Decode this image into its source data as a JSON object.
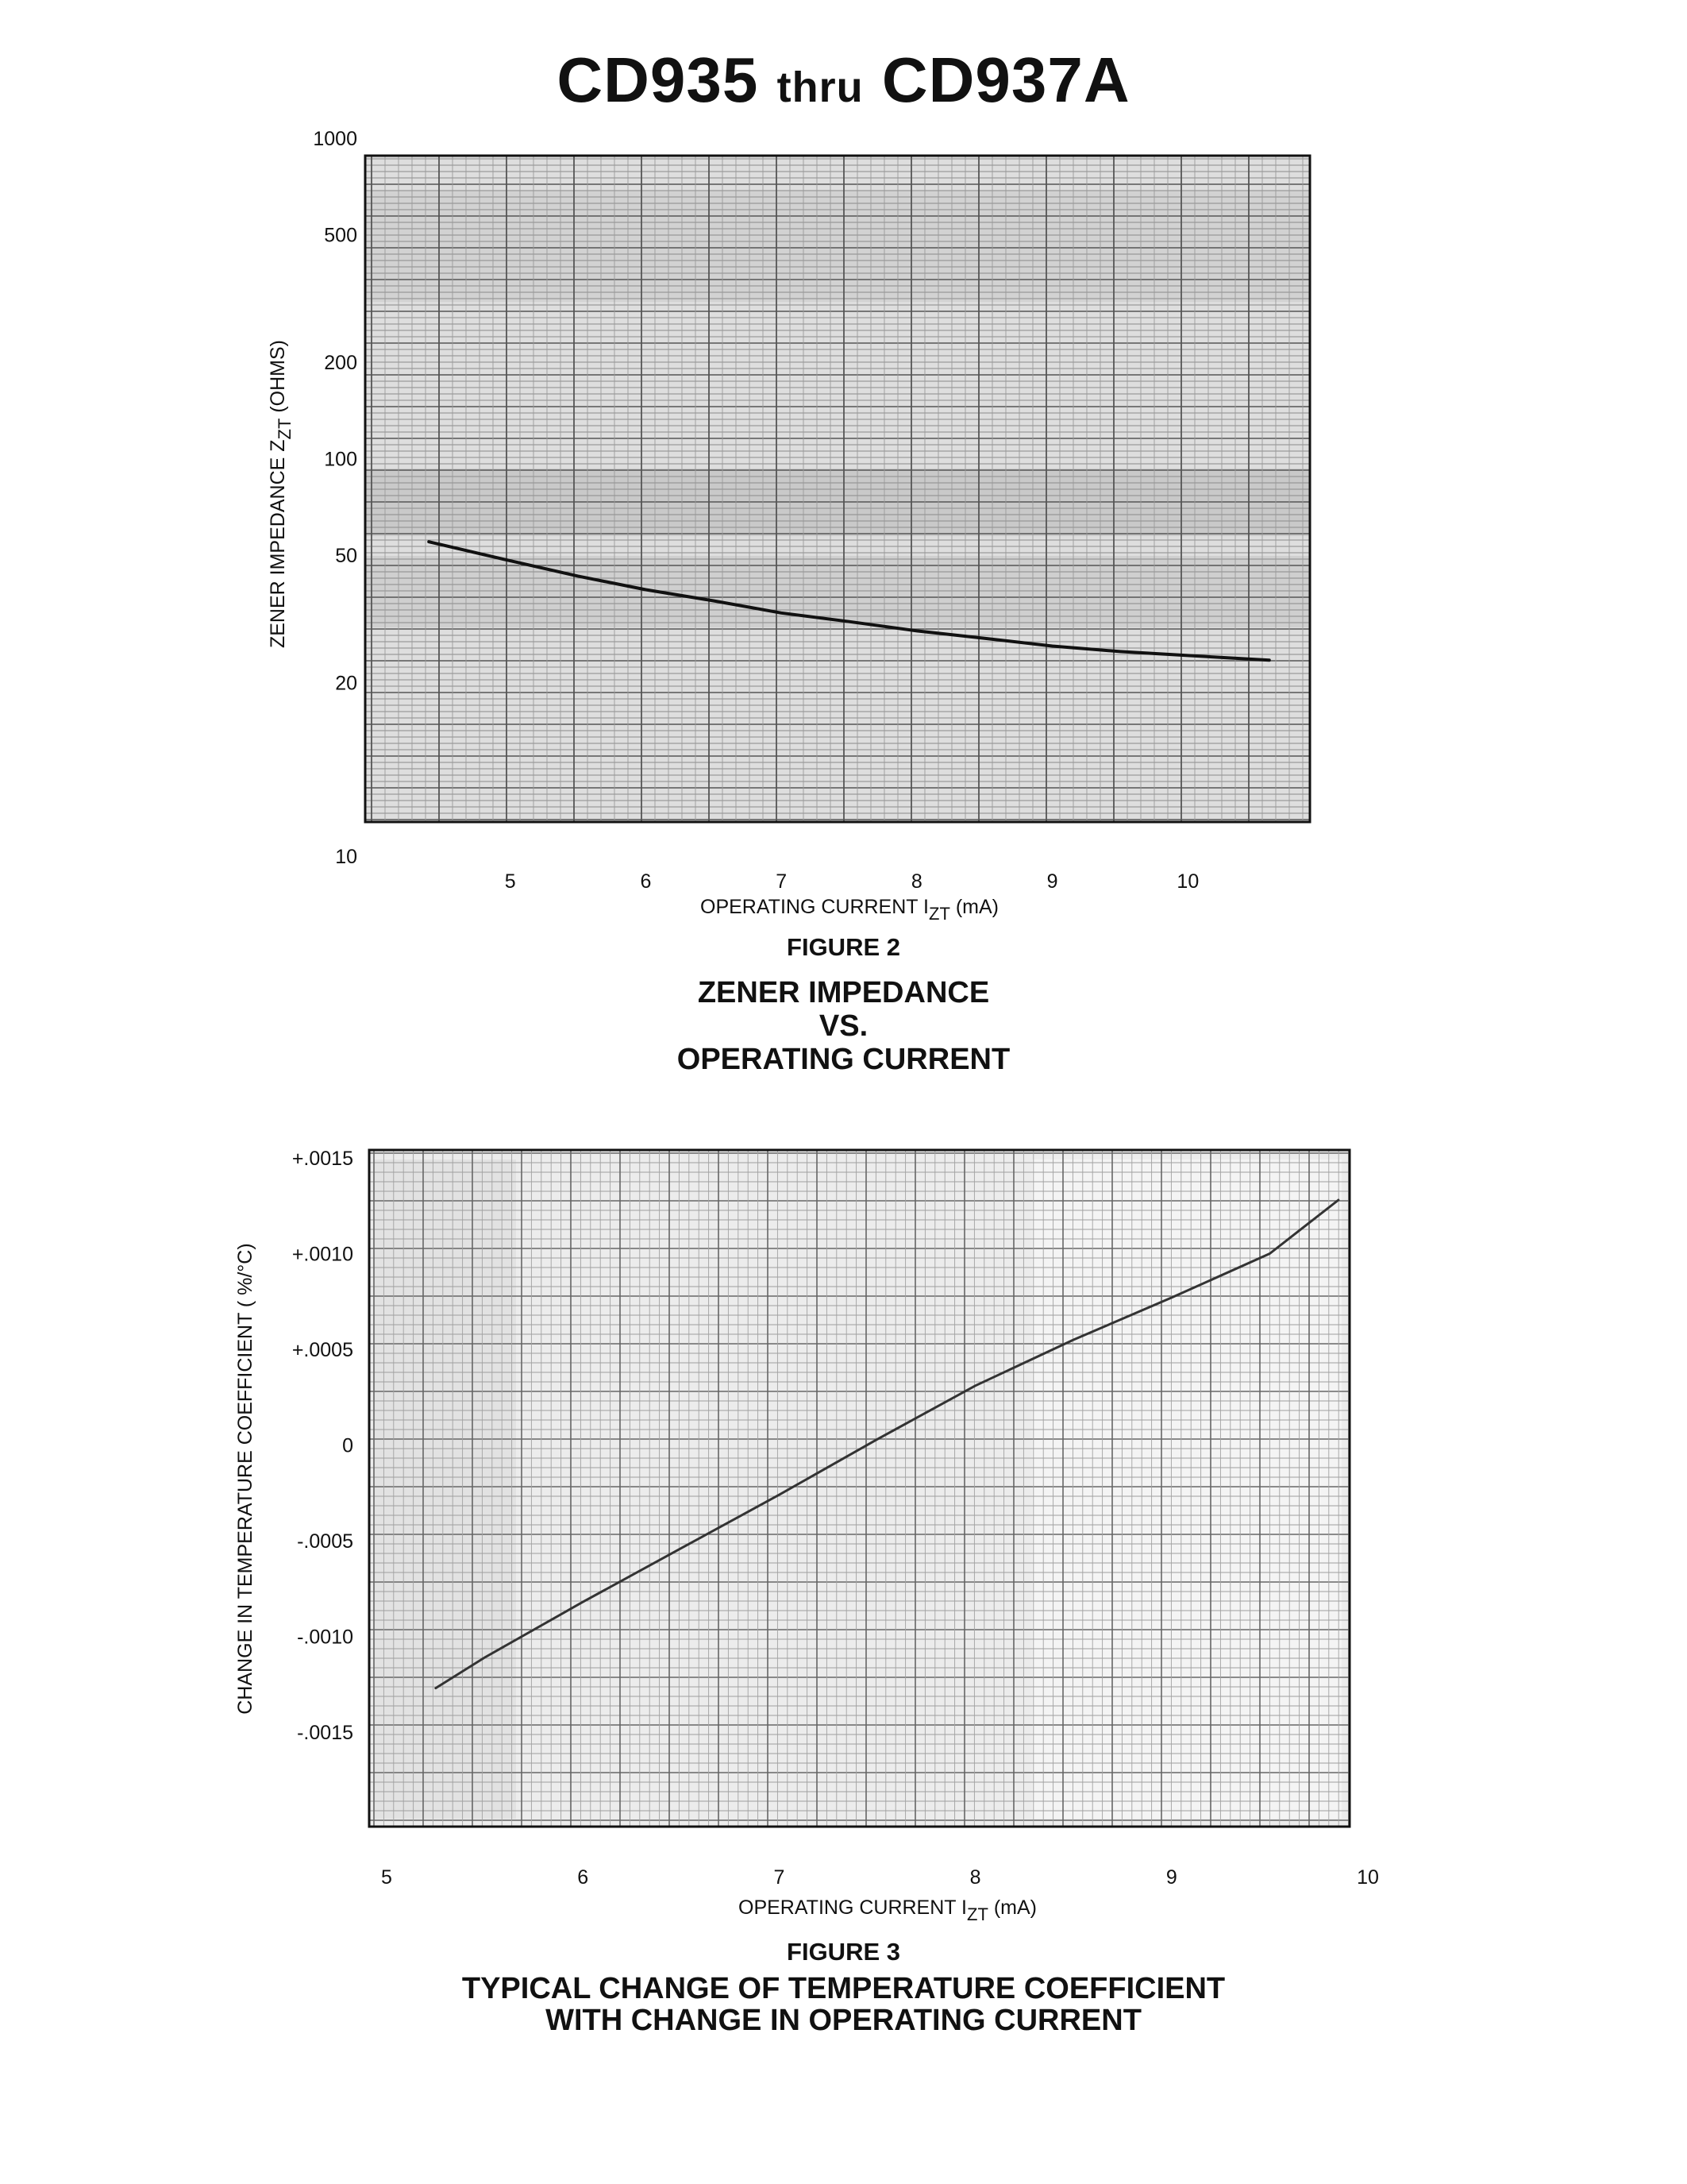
{
  "page": {
    "title_main_1": "CD935",
    "title_small": "thru",
    "title_main_2": "CD937A"
  },
  "figure2": {
    "number": "FIGURE 2",
    "title_lines": [
      "ZENER IMPEDANCE",
      "VS.",
      "OPERATING CURRENT"
    ]
  },
  "figure3": {
    "number": "FIGURE 3",
    "title_lines": [
      "TYPICAL CHANGE OF TEMPERATURE COEFFICIENT",
      "WITH CHANGE IN OPERATING CURRENT"
    ]
  },
  "chart_data": [
    {
      "type": "line",
      "xlabel": "OPERATING CURRENT IZT (mA)",
      "ylabel": "ZENER IMPEDANCE ZZT (OHMS)",
      "y_scale": "log",
      "xlim": [
        3.93,
        10.9
      ],
      "ylim": [
        10,
        1200
      ],
      "x_ticks": [
        5,
        6,
        7,
        8,
        9,
        10
      ],
      "y_ticks": [
        {
          "value": 1000,
          "label": "1000"
        },
        {
          "value": 500,
          "label": "500"
        },
        {
          "value": 200,
          "label": "200"
        },
        {
          "value": 100,
          "label": "100"
        },
        {
          "value": 50,
          "label": "50"
        },
        {
          "value": 20,
          "label": "20"
        },
        {
          "value": 10,
          "label": "10"
        }
      ],
      "grid": true,
      "series": [
        {
          "x": [
            4.4,
            5.0,
            5.5,
            6.0,
            6.5,
            7.0,
            7.5,
            8.0,
            8.5,
            9.0,
            9.5,
            10.0,
            10.6
          ],
          "y": [
            55,
            48,
            43,
            39,
            36,
            33,
            31,
            29,
            27.5,
            26,
            25,
            24.3,
            23.5
          ]
        }
      ]
    },
    {
      "type": "line",
      "xlabel": "OPERATING CURRENT IZT (mA)",
      "ylabel": "CHANGE IN TEMPERATURE COEFFICIENT ( %/°C)",
      "xlim": [
        4.9,
        9.9
      ],
      "ylim": [
        -0.002,
        0.0015
      ],
      "x_ticks": [
        {
          "value": 5,
          "label": "5"
        },
        {
          "value": 6,
          "label": "6"
        },
        {
          "value": 7,
          "label": "7"
        },
        {
          "value": 8,
          "label": "8"
        },
        {
          "value": 9,
          "label": "9"
        },
        {
          "value": 10,
          "label": "10"
        }
      ],
      "y_ticks": [
        {
          "value": 0.0015,
          "label": "+.0015"
        },
        {
          "value": 0.001,
          "label": "+.0010"
        },
        {
          "value": 0.0005,
          "label": "+.0005"
        },
        {
          "value": 0,
          "label": "0"
        },
        {
          "value": -0.0005,
          "label": "-.0005"
        },
        {
          "value": -0.001,
          "label": "-.0010"
        },
        {
          "value": -0.0015,
          "label": "-.0015"
        }
      ],
      "grid": true,
      "series": [
        {
          "x": [
            5.25,
            5.5,
            6.0,
            6.5,
            7.0,
            7.5,
            8.0,
            8.5,
            9.0,
            9.5,
            9.85
          ],
          "y": [
            -0.00127,
            -0.00111,
            -0.00082,
            -0.00054,
            -0.00026,
            3e-05,
            0.00031,
            0.00055,
            0.00077,
            0.001,
            0.00128
          ]
        }
      ]
    }
  ]
}
